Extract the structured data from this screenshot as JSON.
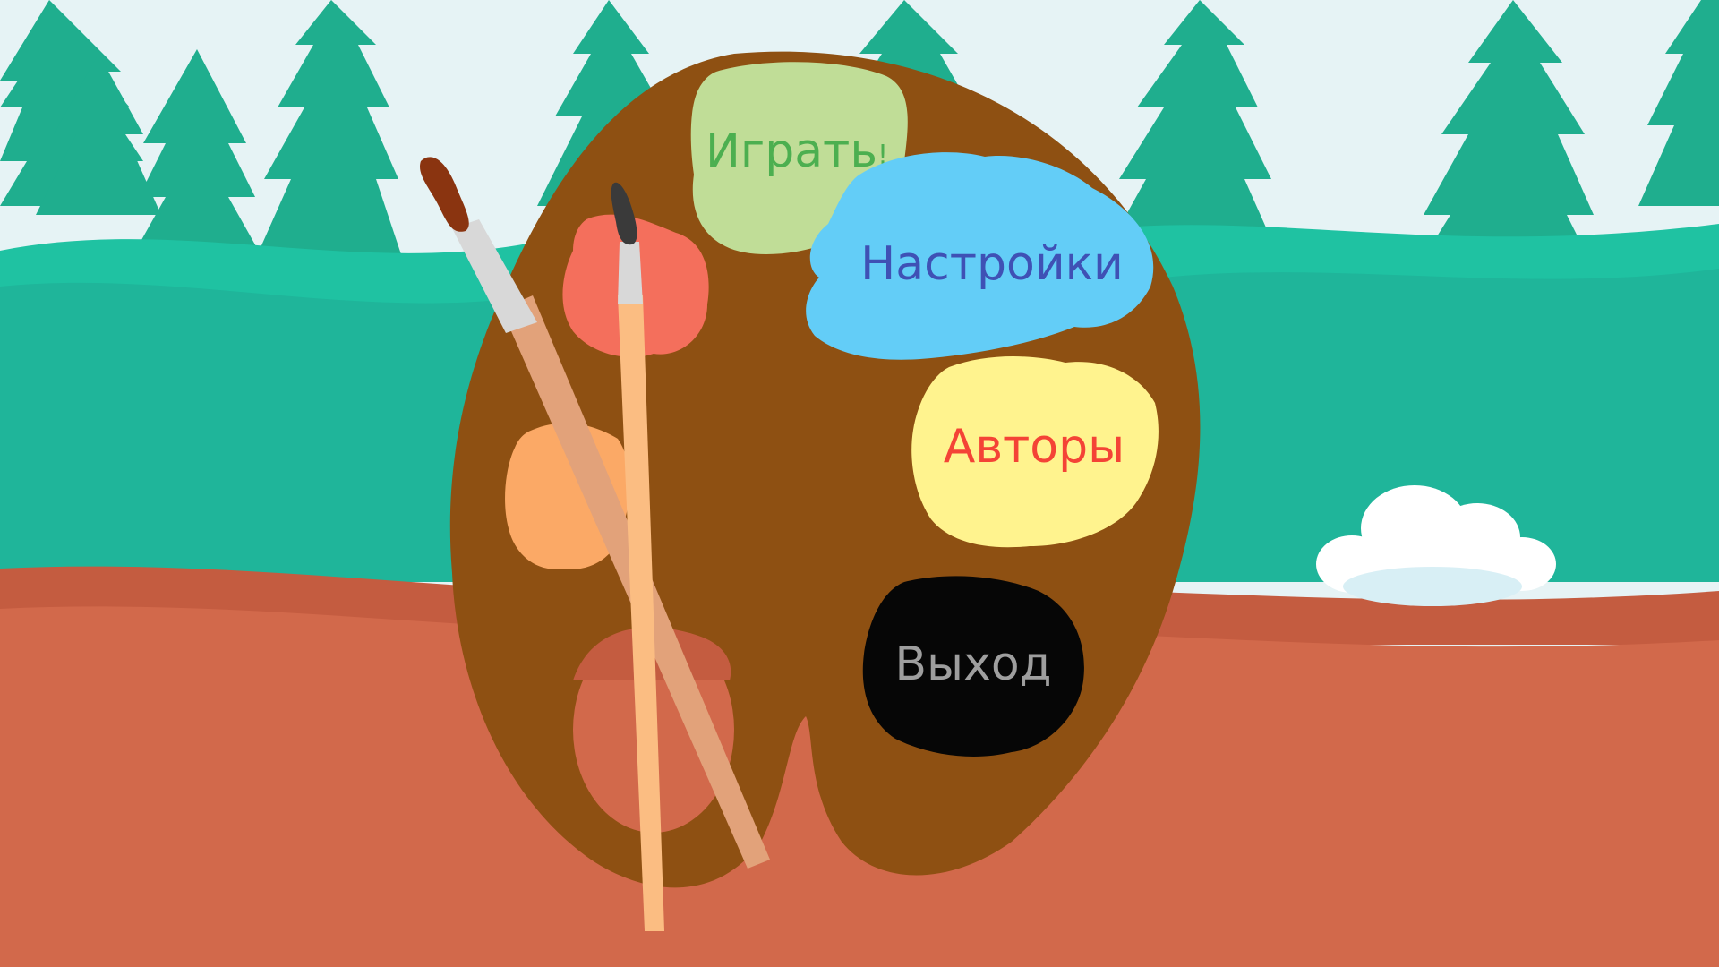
{
  "menu": {
    "play_label": "Играть",
    "play_exclaim": "!",
    "settings_label": "Настройки",
    "authors_label": "Авторы",
    "exit_label": "Выход"
  },
  "colors": {
    "sky": "#e6f3f5",
    "trees": "#1fae8e",
    "hills_far": "#1fc2a2",
    "hills_near": "#1fb59a",
    "ground": "#d2694b",
    "ground_shadow": "#c45c40",
    "palette": "#8e5012",
    "play_blob": "#c0dd97",
    "play_text": "#4caf50",
    "settings_blob": "#63cdf7",
    "settings_text": "#3f51b5",
    "authors_blob": "#fff38e",
    "authors_text": "#f44336",
    "exit_blob": "#060606",
    "exit_text": "#9e9e9e",
    "red_paint": "#f46f5c",
    "orange_paint": "#fba966"
  }
}
